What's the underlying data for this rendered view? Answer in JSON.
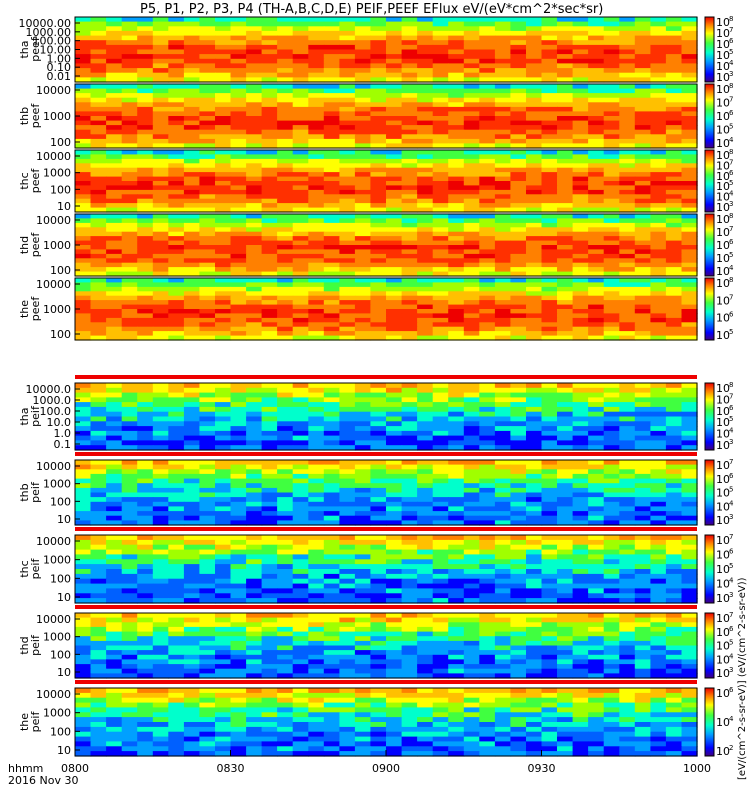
{
  "chart_data": {
    "type": "heatmap",
    "title": "P5, P1, P2, P3, P4 (TH-A,B,C,D,E) PEIF,PEEF EFlux eV/(eV*cm^2*sec*sr)",
    "xlabel": "hhmm",
    "date": "2016 Nov 30",
    "x_ticks": [
      "0800",
      "0830",
      "0900",
      "0930",
      "1000"
    ],
    "colorbar_label": "[eV/(cm^2-s-sr-eV)] (eV/(cm^2-s-sr-eV))",
    "panels": [
      {
        "label": [
          "tha",
          "peef"
        ],
        "yticks": [
          "10000.00",
          "1000.00",
          "100.00",
          "10.00",
          "1.00",
          "0.10",
          "0.01"
        ],
        "cbar_exponents": [
          "8",
          "7",
          "6",
          "5",
          "4",
          "3"
        ]
      },
      {
        "label": [
          "thb",
          "peef"
        ],
        "yticks": [
          "10000",
          "1000",
          "100"
        ],
        "cbar_exponents": [
          "8",
          "7",
          "6",
          "5",
          "4"
        ]
      },
      {
        "label": [
          "thc",
          "peef"
        ],
        "yticks": [
          "10000",
          "1000",
          "100",
          "10"
        ],
        "cbar_exponents": [
          "8",
          "7",
          "6",
          "5",
          "4",
          "3"
        ]
      },
      {
        "label": [
          "thd",
          "peef"
        ],
        "yticks": [
          "10000",
          "1000",
          "100"
        ],
        "cbar_exponents": [
          "8",
          "7",
          "6",
          "5",
          "4"
        ]
      },
      {
        "label": [
          "the",
          "peef"
        ],
        "yticks": [
          "10000",
          "1000",
          "100"
        ],
        "cbar_exponents": [
          "8",
          "7",
          "6",
          "5"
        ]
      },
      {
        "label": [
          "tha",
          "peif"
        ],
        "yticks": [
          "10000.0",
          "1000.0",
          "100.0",
          "10.0",
          "1.0",
          "0.1"
        ],
        "cbar_exponents": [
          "8",
          "7",
          "6",
          "5",
          "4",
          "3"
        ]
      },
      {
        "label": [
          "thb",
          "peif"
        ],
        "yticks": [
          "10000",
          "1000",
          "100",
          "10"
        ],
        "cbar_exponents": [
          "7",
          "6",
          "5",
          "4",
          "3"
        ]
      },
      {
        "label": [
          "thc",
          "peif"
        ],
        "yticks": [
          "10000",
          "1000",
          "100",
          "10"
        ],
        "cbar_exponents": [
          "7",
          "6",
          "5",
          "4",
          "3"
        ]
      },
      {
        "label": [
          "thd",
          "peif"
        ],
        "yticks": [
          "10000",
          "1000",
          "100",
          "10"
        ],
        "cbar_exponents": [
          "7",
          "6",
          "5",
          "4",
          "3"
        ]
      },
      {
        "label": [
          "the",
          "peif"
        ],
        "yticks": [
          "10000",
          "1000",
          "100",
          "10"
        ],
        "cbar_exponents": [
          "6",
          "4",
          "2"
        ]
      }
    ]
  }
}
